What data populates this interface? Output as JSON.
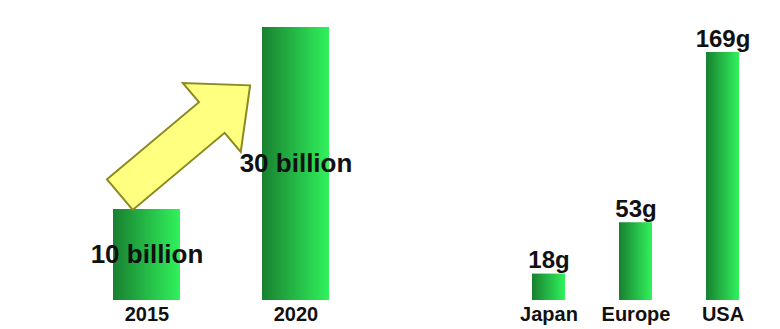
{
  "chart_data": [
    {
      "type": "bar",
      "categories": [
        "2015",
        "2020"
      ],
      "values": [
        10,
        30
      ],
      "value_labels": [
        "10 billion",
        "30 billion"
      ],
      "data_labels": true,
      "tick_labels": "x",
      "color": "#1f9e3c",
      "ylim": [
        0,
        30
      ]
    },
    {
      "type": "bar",
      "categories": [
        "Japan",
        "Europe",
        "USA"
      ],
      "values": [
        18,
        53,
        169
      ],
      "value_labels": [
        "18g",
        "53g",
        "169g"
      ],
      "data_labels": true,
      "tick_labels": "x",
      "color": "#1f9e3c",
      "ylim": [
        0,
        169
      ]
    }
  ]
}
